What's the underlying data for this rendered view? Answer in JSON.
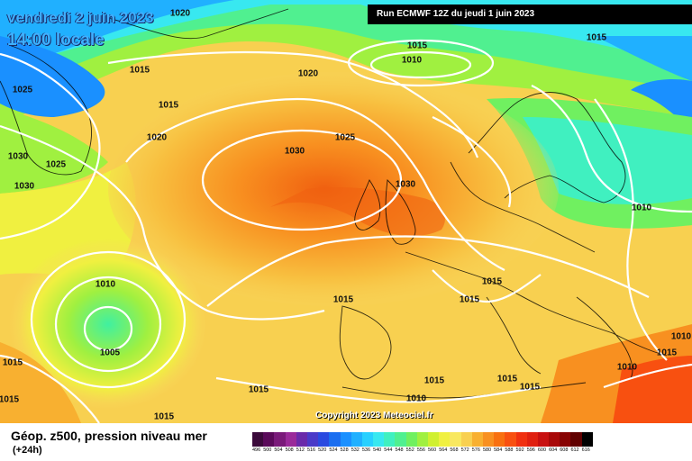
{
  "header": {
    "date": "vendredi 2 juin 2023",
    "time": "14:00 locale",
    "run": "Run ECMWF 12Z du jeudi 1 juin 2023"
  },
  "footer": {
    "title": "Géop. z500, pression niveau mer",
    "subtitle": "(+24h)",
    "copyright": "Copyright 2023 Meteociel.fr"
  },
  "isobars": [
    {
      "label": "1020"
    },
    {
      "label": "1015"
    },
    {
      "label": "1010"
    },
    {
      "label": "1015"
    },
    {
      "label": "1025"
    },
    {
      "label": "1015"
    },
    {
      "label": "1020"
    },
    {
      "label": "1015"
    },
    {
      "label": "1030"
    },
    {
      "label": "1025"
    },
    {
      "label": "1020"
    },
    {
      "label": "1030"
    },
    {
      "label": "1030"
    },
    {
      "label": "1025"
    },
    {
      "label": "1030"
    },
    {
      "label": "1010"
    },
    {
      "label": "1010"
    },
    {
      "label": "1005"
    },
    {
      "label": "1015"
    },
    {
      "label": "1015"
    },
    {
      "label": "1015"
    },
    {
      "label": "1015"
    },
    {
      "label": "1015"
    },
    {
      "label": "1015"
    },
    {
      "label": "1010"
    },
    {
      "label": "1015"
    },
    {
      "label": "1010"
    },
    {
      "label": "1015"
    },
    {
      "label": "1010"
    },
    {
      "label": "1015"
    },
    {
      "label": "1015"
    },
    {
      "label": "1015"
    }
  ],
  "scale": {
    "labels": [
      "496",
      "500",
      "504",
      "508",
      "512",
      "516",
      "520",
      "524",
      "528",
      "532",
      "536",
      "540",
      "544",
      "548",
      "552",
      "556",
      "560",
      "564",
      "568",
      "572",
      "576",
      "580",
      "584",
      "588",
      "592",
      "596",
      "600",
      "604",
      "608",
      "612",
      "616"
    ],
    "colors": [
      "#3a0a3a",
      "#5a0a5a",
      "#7a1a7a",
      "#9a2a9a",
      "#6a2aaa",
      "#4a3ac8",
      "#2a4ae0",
      "#1a6ef0",
      "#1a90ff",
      "#20b0ff",
      "#28d0ff",
      "#38e8f0",
      "#40f0c0",
      "#50f090",
      "#70f060",
      "#a0f040",
      "#d0f030",
      "#f0f040",
      "#f8e860",
      "#f8d050",
      "#f8b030",
      "#f89020",
      "#f87010",
      "#f85010",
      "#f03010",
      "#e02010",
      "#c81010",
      "#a80808",
      "#880404",
      "#600000",
      "#000000"
    ]
  }
}
